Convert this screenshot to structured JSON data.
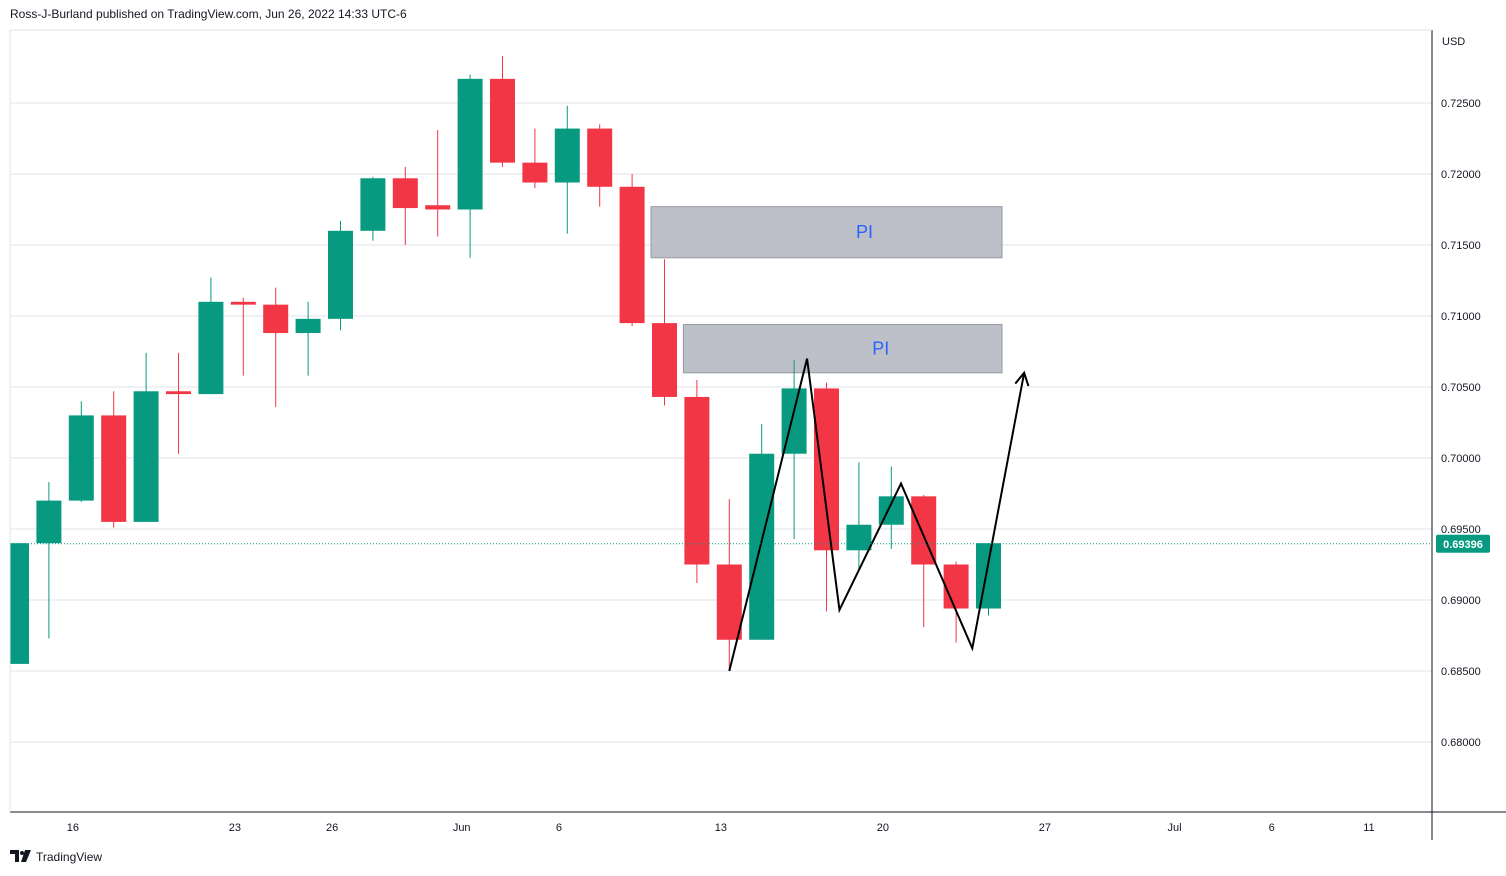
{
  "header": {
    "publisher_line": "Ross-J-Burland published on TradingView.com, Jun 26, 2022 14:33 UTC-6"
  },
  "footer": {
    "brand": "TradingView"
  },
  "chart_data": {
    "type": "candlestick",
    "currency_label": "USD",
    "ylim": [
      0.6755,
      0.7325
    ],
    "y_ticks": [
      0.68,
      0.685,
      0.69,
      0.695,
      0.7,
      0.705,
      0.71,
      0.715,
      0.72,
      0.725
    ],
    "y_tick_labels": [
      "0.68000",
      "0.68500",
      "0.69000",
      "0.69500",
      "0.70000",
      "0.70500",
      "0.71000",
      "0.71500",
      "0.72000",
      "0.72500"
    ],
    "x_ticks": [
      {
        "label": "16",
        "index": 1
      },
      {
        "label": "23",
        "index": 6
      },
      {
        "label": "26",
        "index": 9
      },
      {
        "label": "Jun",
        "index": 13
      },
      {
        "label": "6",
        "index": 16
      },
      {
        "label": "13",
        "index": 21
      },
      {
        "label": "20",
        "index": 26
      },
      {
        "label": "27",
        "index": 31
      },
      {
        "label": "Jul",
        "index": 35
      },
      {
        "label": "6",
        "index": 38
      },
      {
        "label": "11",
        "index": 41
      }
    ],
    "current_price": 0.69396,
    "current_price_label": "0.69396",
    "colors": {
      "up": "#089981",
      "down": "#f23645",
      "grid": "#e0e3eb",
      "zone": "#b2b5be",
      "pattern": "#000000",
      "zone_text": "#2962ff",
      "price_badge": "#089981"
    },
    "candles": [
      {
        "o": 0.6855,
        "h": 0.694,
        "l": 0.6855,
        "c": 0.694
      },
      {
        "o": 0.694,
        "h": 0.6983,
        "l": 0.6873,
        "c": 0.697
      },
      {
        "o": 0.697,
        "h": 0.704,
        "l": 0.6969,
        "c": 0.703
      },
      {
        "o": 0.703,
        "h": 0.7047,
        "l": 0.6951,
        "c": 0.6955
      },
      {
        "o": 0.6955,
        "h": 0.7074,
        "l": 0.6955,
        "c": 0.7047
      },
      {
        "o": 0.7047,
        "h": 0.7074,
        "l": 0.7003,
        "c": 0.7045
      },
      {
        "o": 0.7045,
        "h": 0.7127,
        "l": 0.7045,
        "c": 0.711
      },
      {
        "o": 0.711,
        "h": 0.7113,
        "l": 0.7058,
        "c": 0.7108
      },
      {
        "o": 0.7108,
        "h": 0.712,
        "l": 0.7036,
        "c": 0.7088
      },
      {
        "o": 0.7088,
        "h": 0.711,
        "l": 0.7058,
        "c": 0.7098
      },
      {
        "o": 0.7098,
        "h": 0.7167,
        "l": 0.709,
        "c": 0.716
      },
      {
        "o": 0.716,
        "h": 0.7198,
        "l": 0.7153,
        "c": 0.7197
      },
      {
        "o": 0.7197,
        "h": 0.7205,
        "l": 0.715,
        "c": 0.7176
      },
      {
        "o": 0.7178,
        "h": 0.7231,
        "l": 0.7156,
        "c": 0.7175
      },
      {
        "o": 0.7175,
        "h": 0.727,
        "l": 0.7141,
        "c": 0.7267
      },
      {
        "o": 0.7267,
        "h": 0.7283,
        "l": 0.7205,
        "c": 0.7208
      },
      {
        "o": 0.7208,
        "h": 0.7232,
        "l": 0.719,
        "c": 0.7194
      },
      {
        "o": 0.7194,
        "h": 0.7248,
        "l": 0.7158,
        "c": 0.7232
      },
      {
        "o": 0.7232,
        "h": 0.7235,
        "l": 0.7177,
        "c": 0.7191
      },
      {
        "o": 0.7191,
        "h": 0.72,
        "l": 0.7093,
        "c": 0.7095
      },
      {
        "o": 0.7095,
        "h": 0.714,
        "l": 0.7037,
        "c": 0.7043
      },
      {
        "o": 0.7043,
        "h": 0.7055,
        "l": 0.6912,
        "c": 0.6925
      },
      {
        "o": 0.6925,
        "h": 0.6971,
        "l": 0.685,
        "c": 0.6872
      },
      {
        "o": 0.6872,
        "h": 0.7024,
        "l": 0.6872,
        "c": 0.7003
      },
      {
        "o": 0.7003,
        "h": 0.7069,
        "l": 0.6943,
        "c": 0.7049
      },
      {
        "o": 0.7049,
        "h": 0.7053,
        "l": 0.6892,
        "c": 0.6935
      },
      {
        "o": 0.6935,
        "h": 0.6997,
        "l": 0.6922,
        "c": 0.6953
      },
      {
        "o": 0.6953,
        "h": 0.6994,
        "l": 0.6936,
        "c": 0.6973
      },
      {
        "o": 0.6973,
        "h": 0.6974,
        "l": 0.6881,
        "c": 0.6925
      },
      {
        "o": 0.6925,
        "h": 0.6927,
        "l": 0.687,
        "c": 0.6894
      },
      {
        "o": 0.6894,
        "h": 0.694,
        "l": 0.6889,
        "c": 0.694
      }
    ],
    "zones": [
      {
        "label": "PI",
        "start_index": 20,
        "end_index": 30,
        "top": 0.7177,
        "bottom": 0.7141
      },
      {
        "label": "PI",
        "start_index": 21,
        "end_index": 30,
        "top": 0.7094,
        "bottom": 0.706
      }
    ],
    "pattern_path": [
      {
        "index": 22,
        "price": 0.685
      },
      {
        "index": 24.4,
        "price": 0.707
      },
      {
        "index": 25.4,
        "price": 0.6893
      },
      {
        "index": 27.3,
        "price": 0.6982
      },
      {
        "index": 29.5,
        "price": 0.6866
      },
      {
        "index": 31.1,
        "price": 0.706
      }
    ]
  }
}
